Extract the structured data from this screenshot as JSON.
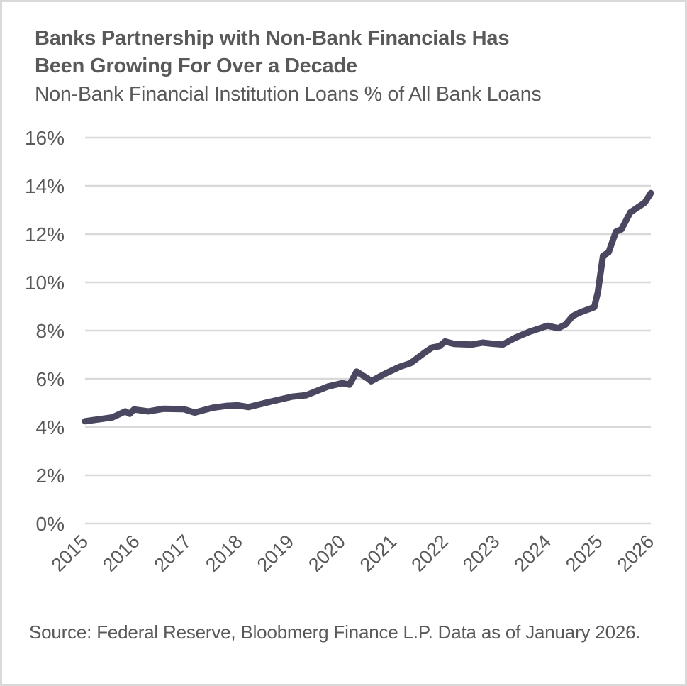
{
  "header": {
    "title_line1": "Banks Partnership with Non-Bank Financials Has",
    "title_line2": "Been Growing For Over a Decade",
    "subtitle": "Non-Bank Financial Institution Loans % of All Bank Loans"
  },
  "footer": {
    "source": "Source: Federal Reserve, Bloobmerg Finance L.P. Data as of January 2026."
  },
  "colors": {
    "line": "#4a4760",
    "grid": "#d9d9d9",
    "text": "#595959",
    "border": "#d9d9d9"
  },
  "chart_data": {
    "type": "line",
    "title": "Banks Partnership with Non-Bank Financials Has Been Growing For Over a Decade",
    "subtitle": "Non-Bank Financial Institution Loans % of All Bank Loans",
    "xlabel": "",
    "ylabel": "",
    "ylim": [
      0,
      16
    ],
    "y_ticks": [
      "0%",
      "2%",
      "4%",
      "6%",
      "8%",
      "10%",
      "12%",
      "14%",
      "16%"
    ],
    "x_ticks": [
      "2015",
      "2016",
      "2017",
      "2018",
      "2019",
      "2020",
      "2021",
      "2022",
      "2023",
      "2024",
      "2025",
      "2026"
    ],
    "x_range": [
      2015,
      2026
    ],
    "grid": "horizontal",
    "legend": "none",
    "series": [
      {
        "name": "Non-Bank Financial Institution Loans % of All Bank Loans",
        "x": [
          2015.0,
          2015.53,
          2015.78,
          2015.87,
          2015.95,
          2016.23,
          2016.53,
          2016.92,
          2017.13,
          2017.48,
          2017.76,
          2017.97,
          2018.18,
          2018.6,
          2019.02,
          2019.3,
          2019.72,
          2020.0,
          2020.14,
          2020.28,
          2020.49,
          2020.56,
          2020.84,
          2021.12,
          2021.33,
          2021.61,
          2021.75,
          2021.89,
          2022.0,
          2022.17,
          2022.52,
          2022.73,
          2022.94,
          2023.12,
          2023.36,
          2023.64,
          2023.92,
          2023.99,
          2024.2,
          2024.34,
          2024.48,
          2024.62,
          2024.9,
          2024.97,
          2025.07,
          2025.18,
          2025.32,
          2025.43,
          2025.6,
          2025.88,
          2026.0
        ],
        "values": [
          4.24,
          4.4,
          4.65,
          4.55,
          4.73,
          4.65,
          4.76,
          4.74,
          4.6,
          4.8,
          4.88,
          4.9,
          4.83,
          5.05,
          5.26,
          5.32,
          5.68,
          5.82,
          5.76,
          6.3,
          6.02,
          5.9,
          6.22,
          6.5,
          6.65,
          7.1,
          7.3,
          7.35,
          7.55,
          7.45,
          7.42,
          7.5,
          7.45,
          7.42,
          7.7,
          7.95,
          8.15,
          8.2,
          8.1,
          8.25,
          8.6,
          8.75,
          8.97,
          9.6,
          11.1,
          11.25,
          12.1,
          12.2,
          12.9,
          13.3,
          13.7
        ]
      }
    ]
  }
}
